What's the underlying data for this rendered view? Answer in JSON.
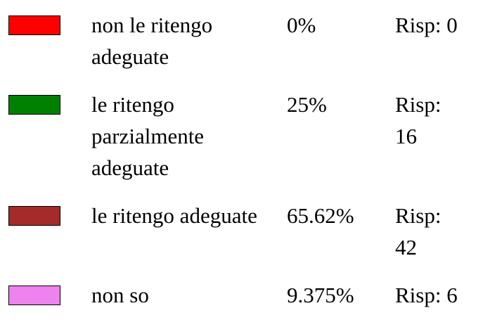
{
  "items": [
    {
      "color": "#ff0000",
      "label": "non le ritengo adeguate",
      "percent": "0%",
      "responses": "Risp: 0"
    },
    {
      "color": "#008000",
      "label": "le ritengo parzialmente adeguate",
      "percent": "25%",
      "responses": "Risp: 16"
    },
    {
      "color": "#a52a2a",
      "label": "le ritengo adeguate",
      "percent": "65.62%",
      "responses": "Risp: 42"
    },
    {
      "color": "#ee82ee",
      "label": "non so",
      "percent": "9.375%",
      "responses": "Risp: 6"
    }
  ]
}
